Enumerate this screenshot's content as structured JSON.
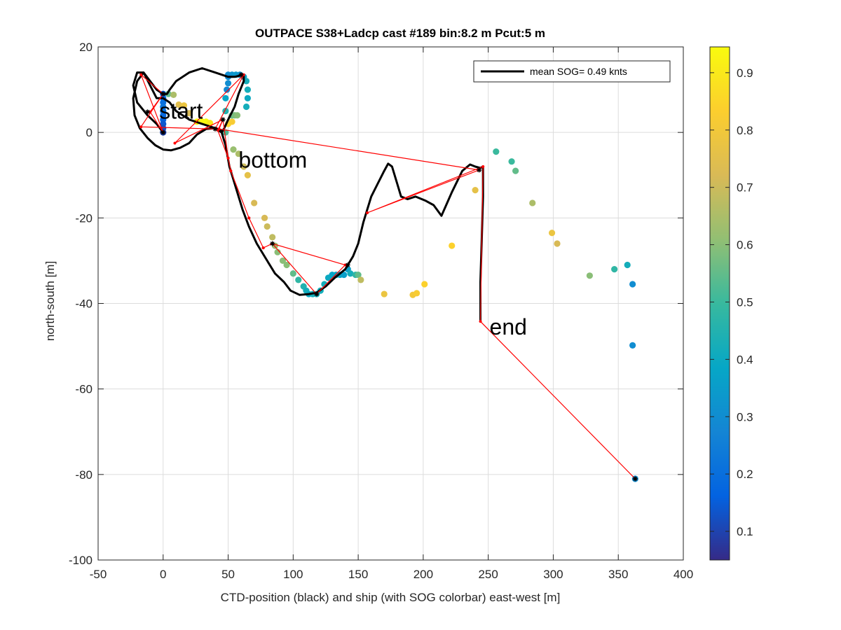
{
  "chart_data": {
    "type": "scatter",
    "title": "OUTPACE S38+Ladcp cast #189 bin:8.2 m  Pcut:5 m",
    "xlabel": "CTD-position (black) and ship (with SOG colorbar) east-west [m]",
    "ylabel": "north-south [m]",
    "xlim": [
      -50,
      400
    ],
    "ylim": [
      -100,
      20
    ],
    "xticks": [
      -50,
      0,
      50,
      100,
      150,
      200,
      250,
      300,
      350,
      400
    ],
    "yticks": [
      -100,
      -80,
      -60,
      -40,
      -20,
      0,
      20
    ],
    "grid": true,
    "legend": {
      "label": "mean SOG=  0.49 knts",
      "placement": "top-right"
    },
    "colorbar": {
      "range": [
        0.05,
        0.945
      ],
      "ticks": [
        0.1,
        0.2,
        0.3,
        0.4,
        0.5,
        0.6,
        0.7,
        0.8,
        0.9
      ],
      "colormap": [
        "#352a87",
        "#0363e1",
        "#1485d4",
        "#06a7c6",
        "#38b99e",
        "#92bf73",
        "#d9ba56",
        "#fcce2e",
        "#f9fb0e"
      ]
    },
    "annotations": [
      {
        "text": "start",
        "x": -3,
        "y": 3.2
      },
      {
        "text": "bottom",
        "x": 58,
        "y": -8.2
      },
      {
        "text": "end",
        "x": 251,
        "y": -47.3
      }
    ],
    "ctd_track": {
      "name": "CTD-position",
      "color": "#000000",
      "points": [
        [
          0,
          0
        ],
        [
          -5,
          2
        ],
        [
          -12,
          4
        ],
        [
          -20,
          7
        ],
        [
          -23,
          11
        ],
        [
          -20,
          14
        ],
        [
          -15,
          14
        ],
        [
          -10,
          11
        ],
        [
          -5,
          8
        ],
        [
          0,
          8
        ],
        [
          5,
          7
        ],
        [
          10,
          5
        ],
        [
          20,
          3
        ],
        [
          30,
          2
        ],
        [
          40,
          1
        ],
        [
          45,
          0
        ],
        [
          45,
          0.5
        ],
        [
          40,
          1
        ],
        [
          33,
          0.8
        ],
        [
          26,
          -0.5
        ],
        [
          20,
          -2.5
        ],
        [
          13,
          -3.6
        ],
        [
          6,
          -4.2
        ],
        [
          0,
          -4
        ],
        [
          -6,
          -3
        ],
        [
          -12,
          -1.3
        ],
        [
          -18,
          1
        ],
        [
          -22,
          4
        ],
        [
          -23,
          8
        ],
        [
          -20,
          12
        ],
        [
          -15,
          14
        ],
        [
          -10,
          12
        ],
        [
          -5,
          10
        ],
        [
          0,
          9
        ],
        [
          3,
          9
        ],
        [
          5,
          10
        ],
        [
          10,
          12
        ],
        [
          20,
          14
        ],
        [
          30,
          15
        ],
        [
          40,
          14
        ],
        [
          50,
          13
        ],
        [
          55,
          13
        ],
        [
          62,
          13.5
        ],
        [
          62,
          12
        ],
        [
          58,
          9
        ],
        [
          55,
          6
        ],
        [
          50,
          3
        ],
        [
          47,
          1
        ],
        [
          45,
          0
        ],
        [
          48,
          -3
        ],
        [
          51,
          -8
        ],
        [
          56,
          -13
        ],
        [
          61,
          -18
        ],
        [
          66,
          -22
        ],
        [
          72,
          -26
        ],
        [
          80,
          -30
        ],
        [
          86,
          -33
        ],
        [
          93,
          -35
        ],
        [
          98,
          -37
        ],
        [
          105,
          -38
        ],
        [
          112,
          -37.8
        ],
        [
          118,
          -37.5
        ],
        [
          125,
          -36
        ],
        [
          132,
          -34
        ],
        [
          140,
          -32
        ],
        [
          146,
          -29
        ],
        [
          150,
          -26
        ],
        [
          154,
          -21
        ],
        [
          157,
          -18
        ],
        [
          160,
          -15
        ],
        [
          165,
          -12
        ],
        [
          170,
          -9
        ],
        [
          173,
          -7.3
        ],
        [
          176,
          -8
        ],
        [
          180,
          -12
        ],
        [
          183,
          -15
        ],
        [
          188,
          -15.6
        ],
        [
          194,
          -15
        ],
        [
          202,
          -16
        ],
        [
          208,
          -17
        ],
        [
          214,
          -19.5
        ],
        [
          222,
          -14
        ],
        [
          230,
          -9
        ],
        [
          236,
          -7.5
        ],
        [
          240,
          -8
        ],
        [
          244,
          -8.3
        ],
        [
          246,
          -8
        ],
        [
          246,
          -15
        ],
        [
          245,
          -25
        ],
        [
          244,
          -35
        ],
        [
          244,
          -44.2
        ]
      ]
    },
    "ctd_markers": [
      [
        0,
        9
      ],
      [
        0,
        0
      ],
      [
        -12,
        4.8
      ],
      [
        40,
        0.8
      ],
      [
        60,
        13.5
      ],
      [
        46,
        3
      ],
      [
        84,
        -26
      ],
      [
        118,
        -37.8
      ],
      [
        142,
        -31
      ],
      [
        243,
        -8.8
      ],
      [
        363,
        -81
      ]
    ],
    "ship_track": {
      "name": "ship",
      "color": "#ff0000",
      "points": [
        [
          0,
          9
        ],
        [
          -17,
          13.5
        ],
        [
          0,
          0
        ],
        [
          -10,
          4.8
        ],
        [
          0,
          9
        ],
        [
          -17,
          1.3
        ],
        [
          40,
          0.8
        ],
        [
          62,
          13.5
        ],
        [
          9,
          -2.5
        ],
        [
          46,
          3
        ],
        [
          42,
          0.5
        ],
        [
          50,
          -6
        ],
        [
          52,
          -9
        ],
        [
          66,
          -20
        ],
        [
          77,
          -27
        ],
        [
          84,
          -26
        ],
        [
          140,
          -31
        ],
        [
          118,
          -37.8
        ],
        [
          84,
          -26
        ],
        [
          77,
          -27
        ],
        [
          66,
          -20
        ],
        [
          52,
          -9
        ],
        [
          50,
          -6
        ],
        [
          46,
          3
        ],
        [
          43,
          0.8
        ],
        [
          243,
          -8.8
        ],
        [
          157,
          -18.8
        ],
        [
          246,
          -8
        ],
        [
          244,
          -44.2
        ],
        [
          363,
          -81
        ]
      ]
    },
    "ship_points": [
      {
        "x": 0,
        "y": 9,
        "v": 0.15
      },
      {
        "x": 0,
        "y": 8,
        "v": 0.18
      },
      {
        "x": 0,
        "y": 7,
        "v": 0.2
      },
      {
        "x": 0,
        "y": 6,
        "v": 0.22
      },
      {
        "x": 0,
        "y": 5,
        "v": 0.2
      },
      {
        "x": 0,
        "y": 4,
        "v": 0.18
      },
      {
        "x": 0,
        "y": 3,
        "v": 0.16
      },
      {
        "x": 0,
        "y": 2,
        "v": 0.14
      },
      {
        "x": 0,
        "y": 1,
        "v": 0.12
      },
      {
        "x": 0,
        "y": 0,
        "v": 0.1
      },
      {
        "x": 4,
        "y": 9,
        "v": 0.55
      },
      {
        "x": 8,
        "y": 8.8,
        "v": 0.65
      },
      {
        "x": 12,
        "y": 6.5,
        "v": 0.75
      },
      {
        "x": 16,
        "y": 6.3,
        "v": 0.78
      },
      {
        "x": 20,
        "y": 4.5,
        "v": 0.72
      },
      {
        "x": 26,
        "y": 2.5,
        "v": 0.94
      },
      {
        "x": 30,
        "y": 2.5,
        "v": 0.94
      },
      {
        "x": 33,
        "y": 2.5,
        "v": 0.94
      },
      {
        "x": 36,
        "y": 2.2,
        "v": 0.9
      },
      {
        "x": 48,
        "y": 0,
        "v": 0.52
      },
      {
        "x": 50,
        "y": 2,
        "v": 0.85
      },
      {
        "x": 53,
        "y": 2.5,
        "v": 0.82
      },
      {
        "x": 53,
        "y": 4,
        "v": 0.55
      },
      {
        "x": 55,
        "y": 4,
        "v": 0.58
      },
      {
        "x": 57,
        "y": 4,
        "v": 0.6
      },
      {
        "x": 50,
        "y": 13.5,
        "v": 0.3
      },
      {
        "x": 53,
        "y": 13.5,
        "v": 0.32
      },
      {
        "x": 56,
        "y": 13.5,
        "v": 0.34
      },
      {
        "x": 59,
        "y": 13.5,
        "v": 0.32
      },
      {
        "x": 62,
        "y": 13,
        "v": 0.38
      },
      {
        "x": 64,
        "y": 12,
        "v": 0.42
      },
      {
        "x": 65,
        "y": 10,
        "v": 0.42
      },
      {
        "x": 65,
        "y": 8,
        "v": 0.4
      },
      {
        "x": 64,
        "y": 6,
        "v": 0.42
      },
      {
        "x": 50,
        "y": 13,
        "v": 0.3
      },
      {
        "x": 50,
        "y": 11.5,
        "v": 0.3
      },
      {
        "x": 49,
        "y": 10,
        "v": 0.28
      },
      {
        "x": 48,
        "y": 8,
        "v": 0.38
      },
      {
        "x": 48,
        "y": 5,
        "v": 0.45
      },
      {
        "x": 54,
        "y": -4,
        "v": 0.62
      },
      {
        "x": 58,
        "y": -5,
        "v": 0.65
      },
      {
        "x": 62,
        "y": -8,
        "v": 0.7
      },
      {
        "x": 65,
        "y": -10,
        "v": 0.76
      },
      {
        "x": 70,
        "y": -16.5,
        "v": 0.72
      },
      {
        "x": 78,
        "y": -20,
        "v": 0.72
      },
      {
        "x": 80,
        "y": -22,
        "v": 0.7
      },
      {
        "x": 84,
        "y": -24.5,
        "v": 0.68
      },
      {
        "x": 86,
        "y": -26.5,
        "v": 0.62
      },
      {
        "x": 88,
        "y": -28,
        "v": 0.6
      },
      {
        "x": 92,
        "y": -30,
        "v": 0.6
      },
      {
        "x": 95,
        "y": -31,
        "v": 0.6
      },
      {
        "x": 100,
        "y": -33,
        "v": 0.55
      },
      {
        "x": 104,
        "y": -34.5,
        "v": 0.48
      },
      {
        "x": 108,
        "y": -36,
        "v": 0.45
      },
      {
        "x": 110,
        "y": -37,
        "v": 0.42
      },
      {
        "x": 112,
        "y": -37.8,
        "v": 0.4
      },
      {
        "x": 115,
        "y": -37.8,
        "v": 0.42
      },
      {
        "x": 118,
        "y": -37.8,
        "v": 0.42
      },
      {
        "x": 121,
        "y": -37,
        "v": 0.42
      },
      {
        "x": 124,
        "y": -35.5,
        "v": 0.42
      },
      {
        "x": 127,
        "y": -34,
        "v": 0.4
      },
      {
        "x": 130,
        "y": -33.3,
        "v": 0.38
      },
      {
        "x": 133,
        "y": -33.3,
        "v": 0.38
      },
      {
        "x": 136,
        "y": -33.3,
        "v": 0.38
      },
      {
        "x": 139,
        "y": -33.3,
        "v": 0.36
      },
      {
        "x": 142,
        "y": -32,
        "v": 0.36
      },
      {
        "x": 144,
        "y": -33,
        "v": 0.42
      },
      {
        "x": 148,
        "y": -33.3,
        "v": 0.48
      },
      {
        "x": 150,
        "y": -33.3,
        "v": 0.55
      },
      {
        "x": 152,
        "y": -34.5,
        "v": 0.68
      },
      {
        "x": 170,
        "y": -37.8,
        "v": 0.78
      },
      {
        "x": 192,
        "y": -38,
        "v": 0.8
      },
      {
        "x": 195,
        "y": -37.6,
        "v": 0.82
      },
      {
        "x": 201,
        "y": -35.5,
        "v": 0.84
      },
      {
        "x": 222,
        "y": -26.5,
        "v": 0.84
      },
      {
        "x": 240,
        "y": -13.5,
        "v": 0.76
      },
      {
        "x": 256,
        "y": -4.5,
        "v": 0.5
      },
      {
        "x": 268,
        "y": -6.8,
        "v": 0.5
      },
      {
        "x": 271,
        "y": -9,
        "v": 0.55
      },
      {
        "x": 284,
        "y": -16.5,
        "v": 0.65
      },
      {
        "x": 299,
        "y": -23.5,
        "v": 0.78
      },
      {
        "x": 303,
        "y": -26,
        "v": 0.72
      },
      {
        "x": 328,
        "y": -33.5,
        "v": 0.6
      },
      {
        "x": 347,
        "y": -32,
        "v": 0.48
      },
      {
        "x": 357,
        "y": -31,
        "v": 0.42
      },
      {
        "x": 361,
        "y": -35.5,
        "v": 0.3
      },
      {
        "x": 361,
        "y": -49.8,
        "v": 0.3
      },
      {
        "x": 363,
        "y": -81,
        "v": 0.3
      }
    ]
  }
}
